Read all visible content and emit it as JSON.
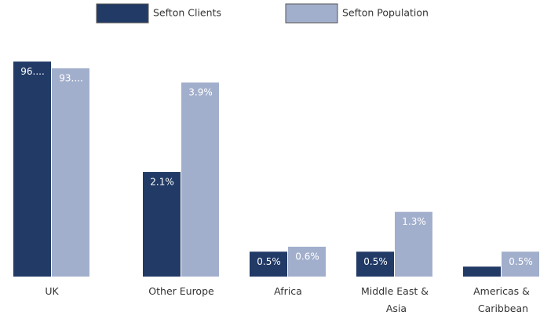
{
  "chart_data": [
    {
      "type": "bar",
      "categories": [
        "UK"
      ],
      "ylim": [
        0,
        100
      ],
      "series": [
        {
          "name": "Sefton Clients",
          "color": "#213a66",
          "values": [
            96
          ],
          "value_labels": [
            "96...."
          ]
        },
        {
          "name": "Sefton Population",
          "color": "#a2afcc",
          "values": [
            93
          ],
          "value_labels": [
            "93...."
          ]
        }
      ]
    },
    {
      "type": "bar",
      "categories": [
        "Other Europe"
      ],
      "ylim": [
        0,
        4.5
      ],
      "series": [
        {
          "name": "Sefton Clients",
          "color": "#213a66",
          "values": [
            2.1
          ],
          "value_labels": [
            "2.1%"
          ]
        },
        {
          "name": "Sefton Population",
          "color": "#a2afcc",
          "values": [
            3.9
          ],
          "value_labels": [
            "3.9%"
          ]
        }
      ]
    },
    {
      "type": "bar",
      "categories": [
        "Africa"
      ],
      "ylim": [
        0,
        4.5
      ],
      "series": [
        {
          "name": "Sefton Clients",
          "color": "#213a66",
          "values": [
            0.5
          ],
          "value_labels": [
            "0.5%"
          ]
        },
        {
          "name": "Sefton Population",
          "color": "#a2afcc",
          "values": [
            0.6
          ],
          "value_labels": [
            "0.6%"
          ]
        }
      ]
    },
    {
      "type": "bar",
      "categories": [
        "Middle East & Asia"
      ],
      "ylim": [
        0,
        4.5
      ],
      "series": [
        {
          "name": "Sefton Clients",
          "color": "#213a66",
          "values": [
            0.5
          ],
          "value_labels": [
            "0.5%"
          ]
        },
        {
          "name": "Sefton Population",
          "color": "#a2afcc",
          "values": [
            1.3
          ],
          "value_labels": [
            "1.3%"
          ]
        }
      ]
    },
    {
      "type": "bar",
      "categories": [
        "Americas & Caribbean"
      ],
      "ylim": [
        0,
        4.5
      ],
      "series": [
        {
          "name": "Sefton Clients",
          "color": "#213a66",
          "values": [
            0.2
          ],
          "value_labels": [
            null
          ]
        },
        {
          "name": "Sefton Population",
          "color": "#a2afcc",
          "values": [
            0.5
          ],
          "value_labels": [
            "0.5%"
          ]
        }
      ]
    }
  ]
}
